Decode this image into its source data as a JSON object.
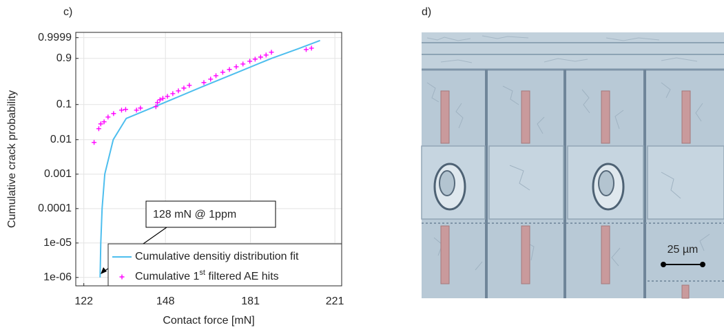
{
  "chart_data": {
    "type": "scatter",
    "panel_label": "c)",
    "xlabel": "Contact force [mN]",
    "ylabel": "Cumulative crack probability",
    "xscale": "log",
    "yscale": "weibull",
    "grid": true,
    "legend": "lower right",
    "xlim": [
      119.7,
      224.6
    ],
    "xticks": [
      122,
      148,
      181,
      221
    ],
    "ylim": [
      5.7e-07,
      0.999998
    ],
    "yticks": [
      {
        "value": 1e-06,
        "label": "1e-06"
      },
      {
        "value": 1e-05,
        "label": "1e-05"
      },
      0.0001,
      0.001,
      0.01,
      0.1,
      0.9,
      0.9999
    ],
    "annotation": "128 mN @ 1ppm",
    "series": [
      {
        "name": "Cumulative densitiy distribution fit",
        "kind": "line",
        "color": "#4dbeee",
        "x": [
          126.8,
          127.0,
          127.4,
          128.2,
          130.8,
          134.9,
          146.1,
          162.1,
          175.6,
          190.2,
          202.6,
          213.4
        ],
        "values": [
          1e-06,
          1e-05,
          0.0001,
          0.001,
          0.01,
          0.0408,
          0.1,
          0.304,
          0.598,
          0.9,
          0.9876,
          0.99951
        ]
      },
      {
        "name": "Cumulative 1st filtered AE hits",
        "kind": "points",
        "color": "#ff00ff",
        "x": [
          125.0,
          126.4,
          127.0,
          128.0,
          129.2,
          130.9,
          133.4,
          134.7,
          138.2,
          139.5,
          144.7,
          145.2,
          146.1,
          147.1,
          148.7,
          150.6,
          152.6,
          154.6,
          156.6,
          162.1,
          164.7,
          166.8,
          169.5,
          172.2,
          175.0,
          177.8,
          180.7,
          183.0,
          185.4,
          187.8,
          190.2,
          206.5,
          209.1
        ],
        "values": [
          0.0083,
          0.0207,
          0.0284,
          0.0326,
          0.0446,
          0.0559,
          0.0698,
          0.073,
          0.0698,
          0.0798,
          0.0872,
          0.113,
          0.1345,
          0.147,
          0.166,
          0.196,
          0.231,
          0.271,
          0.316,
          0.367,
          0.437,
          0.515,
          0.598,
          0.666,
          0.732,
          0.795,
          0.851,
          0.888,
          0.919,
          0.944,
          0.969,
          0.9845,
          0.9896
        ]
      }
    ]
  },
  "micrograph": {
    "panel_label": "d)",
    "scale_bar_label": "25 µm"
  }
}
